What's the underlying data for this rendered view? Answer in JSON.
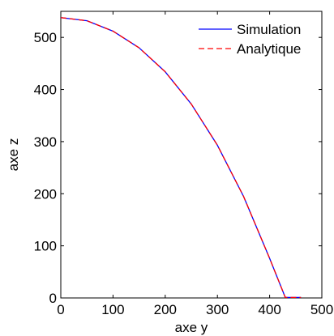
{
  "chart_data": {
    "type": "line",
    "xlabel": "axe y",
    "ylabel": "axe z",
    "xlim": [
      0,
      500
    ],
    "ylim": [
      0,
      550
    ],
    "xticks": [
      0,
      100,
      200,
      300,
      400,
      500
    ],
    "yticks": [
      0,
      100,
      200,
      300,
      400,
      500
    ],
    "grid": false,
    "legend_position": "top-right",
    "series": [
      {
        "name": "Simulation",
        "color": "#0000ff",
        "style": "solid",
        "x": [
          0,
          50,
          100,
          150,
          200,
          250,
          300,
          350,
          400,
          430,
          450,
          460
        ],
        "y": [
          538,
          532,
          512,
          480,
          434,
          372,
          293,
          195,
          76,
          1,
          1,
          1
        ]
      },
      {
        "name": "Analytique",
        "color": "#ff0000",
        "style": "dashed",
        "x": [
          0,
          50,
          100,
          150,
          200,
          250,
          300,
          350,
          400,
          430,
          450,
          460
        ],
        "y": [
          538,
          532,
          512,
          480,
          434,
          372,
          293,
          195,
          76,
          1,
          1,
          1
        ]
      }
    ]
  }
}
